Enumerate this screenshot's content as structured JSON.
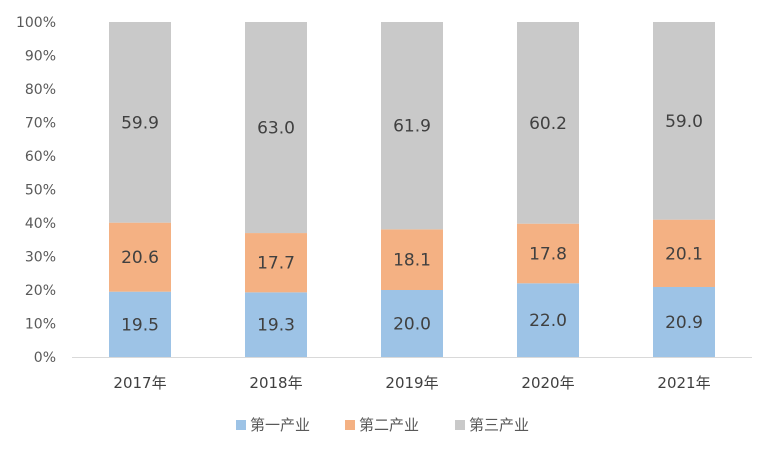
{
  "chart_data": {
    "type": "bar",
    "stacked": true,
    "categories": [
      "2017年",
      "2018年",
      "2019年",
      "2020年",
      "2021年"
    ],
    "series": [
      {
        "name": "第一产业",
        "values": [
          19.5,
          19.3,
          20.0,
          22.0,
          20.9
        ],
        "labels": [
          "19.5",
          "19.3",
          "20.0",
          "22.0",
          "20.9"
        ],
        "color": "#9dc3e6"
      },
      {
        "name": "第二产业",
        "values": [
          20.6,
          17.7,
          18.1,
          17.8,
          20.1
        ],
        "labels": [
          "20.6",
          "17.7",
          "18.1",
          "17.8",
          "20.1"
        ],
        "color": "#f4b183"
      },
      {
        "name": "第三产业",
        "values": [
          59.9,
          63.0,
          61.9,
          60.2,
          59.0
        ],
        "labels": [
          "59.9",
          "63.0",
          "61.9",
          "60.2",
          "59.0"
        ],
        "color": "#c9c9c9"
      }
    ],
    "ylim": [
      0,
      100
    ],
    "yticks": [
      "0%",
      "10%",
      "20%",
      "30%",
      "40%",
      "50%",
      "60%",
      "70%",
      "80%",
      "90%",
      "100%"
    ],
    "grid": false,
    "legend_position": "bottom",
    "title": "",
    "xlabel": "",
    "ylabel": ""
  }
}
